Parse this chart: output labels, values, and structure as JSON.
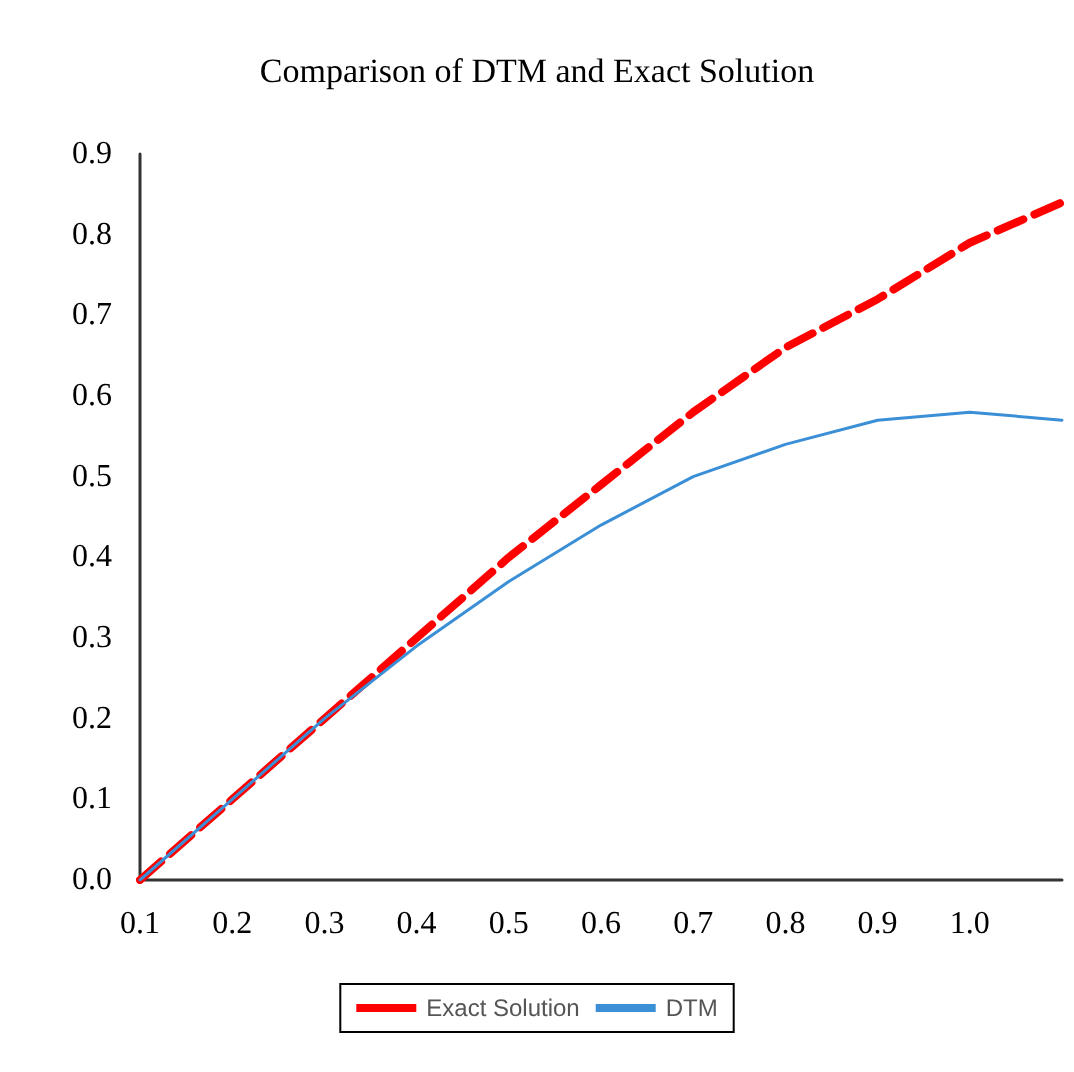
{
  "chart_data": {
    "type": "line",
    "title": "Comparison of DTM and Exact Solution",
    "categories": [
      "0.1",
      "0.2",
      "0.3",
      "0.4",
      "0.5",
      "0.6",
      "0.7",
      "0.8",
      "0.9",
      "1.0",
      null
    ],
    "series": [
      {
        "name": "Exact Solution",
        "color": "#ff0000",
        "line_style": "dashed",
        "values": [
          0,
          0.1,
          0.2,
          0.3,
          0.4,
          0.49,
          0.58,
          0.66,
          0.72,
          0.79,
          0.84
        ]
      },
      {
        "name": "DTM",
        "color": "#3a8fd6",
        "line_style": "solid",
        "values": [
          0,
          0.1,
          0.2,
          0.29,
          0.37,
          0.44,
          0.5,
          0.54,
          0.57,
          0.58,
          0.57
        ]
      }
    ],
    "ylim": [
      0,
      0.9
    ],
    "yticks": [
      {
        "value": 0,
        "label": "0.0"
      },
      0.1,
      0.2,
      0.3,
      0.4,
      0.5,
      0.6,
      0.7,
      0.8,
      0.9
    ],
    "grid": false,
    "legend": "bottom",
    "marker": "none"
  }
}
